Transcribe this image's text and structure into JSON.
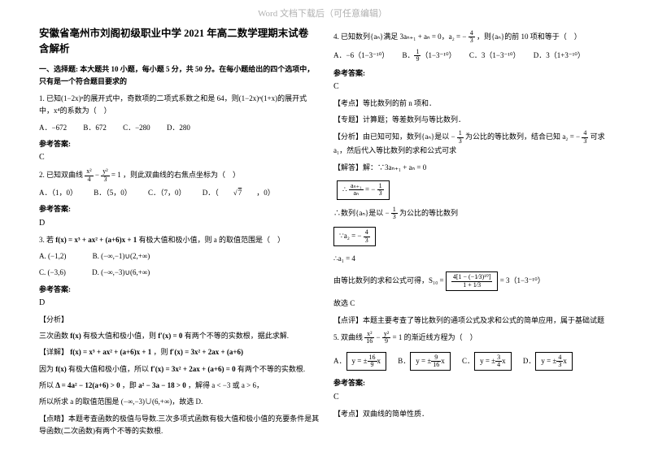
{
  "watermark": "Word 文档下载后（可任意编辑）",
  "left": {
    "title_l1": "安徽省亳州市刘阁初级职业中学 2021 年高二数学理期末试卷",
    "title_l2": "含解析",
    "section1": "一、选择题: 本大题共 10 小题，每小题 5 分，共 50 分。在每小题给出的四个选项中，只有是一个符合题目要求的",
    "q1": {
      "stem": "1. 已知(1−2x)ⁿ的展开式中，奇数项的二项式系数之和是 64，则(1−2x)ⁿ(1+x)的展开式中，x⁴的系数为（　）",
      "A": "A．−672",
      "B": "B．672",
      "C": "C．−280",
      "D": "D．280",
      "ans_label": "参考答案:",
      "ans": "C"
    },
    "q2": {
      "stem_pre": "2. 已知双曲线",
      "frac_n": "x²",
      "frac_d": "4",
      "minus": "−",
      "frac2_n": "y²",
      "frac2_d": "3",
      "eq": "= 1",
      "stem_post": "，则此双曲线的右焦点坐标为（　）",
      "A": "A．（1，0）",
      "B": "B．（5，0）",
      "C": "C．（7，0）",
      "D_pre": "D．（",
      "D_sqrt": "7",
      "D_post": "，0）",
      "ans_label": "参考答案:",
      "ans": "D"
    },
    "q3": {
      "stem_pre": "3. 若",
      "fx": "f(x) = x³ + ax² + (a+6)x + 1",
      "stem_post": "有极大值和极小值，则 a 的取值范围是（　）",
      "A": "A. (−1,2)",
      "B": "B. (−∞,−1)∪(2,+∞)",
      "C": "C. (−3,6)",
      "D": "D. (−∞,−3)∪(6,+∞)",
      "ans_label": "参考答案:",
      "ans": "D",
      "analysis_label": "【分析】",
      "a1_pre": "三次函数",
      "a1_fx": "f(x)",
      "a1_mid": "有极大值和极小值，则",
      "a1_fpx": "f′(x) = 0",
      "a1_post": "有两个不等的实数根，据此求解.",
      "a2_pre": "【详解】",
      "a2_fx": "f(x) = x³ + ax² + (a+6)x + 1",
      "a2_comma": "，则",
      "a2_fpx": "f′(x) = 3x² + 2ax + (a+6)",
      "a3_pre": "因为",
      "a3_fx": "f(x)",
      "a3_mid": "有极大值和极小值，所以",
      "a3_fpx": "f′(x) = 3x² + 2ax + (a+6) = 0",
      "a3_post": "有两个不等的实数根.",
      "a4_pre": "所以",
      "a4_delta": "Δ = 4a² − 12(a+6) > 0",
      "a4_mid": "，即",
      "a4_ineq": "a² − 3a − 18 > 0",
      "a4_post": "，解得 a < −3 或 a > 6，",
      "a5": "所以所求 a 的取值范围是 (−∞,−3)∪(6,+∞)，故选 D.",
      "a6": "【点睛】本题考查函数的极值与导数.三次多项式函数有极大值和极小值的充要条件是其导函数(二次函数)有两个不等的实数根."
    }
  },
  "right": {
    "q4": {
      "stem_pre": "4. 已知数列{aₙ}满足 3aₙ₊₁ + aₙ = 0，a₂ = −",
      "frac_n": "4",
      "frac_d": "3",
      "stem_post": "，则{aₙ}的前 10 项和等于（　）",
      "A": "A．−6（1−3⁻¹⁰）",
      "B_pre": "B．",
      "B_frac_n": "1",
      "B_frac_d": "9",
      "B_post": "（1−3⁻¹⁰）",
      "C": "C．3（1−3⁻¹⁰）",
      "D": "D．3（1+3⁻¹⁰）",
      "ans_label": "参考答案:",
      "ans": "C",
      "t1": "【考点】等比数列的前 n 项和．",
      "t2": "【专题】计算题；等差数列与等比数列．",
      "t3_pre": "【分析】由已知可知，数列{aₙ}是以 −",
      "t3_n": "1",
      "t3_d": "3",
      "t3_mid": "为公比的等比数列，结合已知",
      "t3_a2": "a₂ = −",
      "t3_n2": "4",
      "t3_d2": "3",
      "t3_post": "可求 a₁，然后代入等比数列的求和公式可求",
      "t4": "【解答】解：∵3aₙ₊₁ + aₙ = 0",
      "t5_lhs_n": "aₙ₊₁",
      "t5_lhs_d": "aₙ",
      "t5_eq": "= −",
      "t5_rhs_n": "1",
      "t5_rhs_d": "3",
      "t6_pre": "∴数列{aₙ}是以 −",
      "t6_n": "1",
      "t6_d": "3",
      "t6_post": "为公比的等比数列",
      "t7_pre": "∵a₂ = −",
      "t7_n": "4",
      "t7_d": "3",
      "t8": "∴a₁ = 4",
      "t9_pre": "由等比数列的求和公式可得，S₁₀ = ",
      "t9_num": "4[1 − (−1⁄3)¹⁰]",
      "t9_den": "1 + 1⁄3",
      "t9_post": " = 3（1−3⁻¹⁰）",
      "t10": "故选 C",
      "t11": "【点评】本题主要考查了等比数列的通项公式及求和公式的简单应用，属于基础试题"
    },
    "q5": {
      "stem_pre": "5. 双曲线",
      "n1": "x²",
      "d1": "16",
      "minus": "−",
      "n2": "y²",
      "d2": "9",
      "eq": "= 1",
      "stem_post": "的渐近线方程为（　）",
      "A_pre": "A．",
      "A_eq": "y = ±",
      "A_n": "16",
      "A_d": "9",
      "A_x": "x",
      "B_pre": "B．",
      "B_eq": "y = ±",
      "B_n": "9",
      "B_d": "16",
      "B_x": "x",
      "C_pre": "C．",
      "C_eq": "y = ±",
      "C_n": "3",
      "C_d": "4",
      "C_x": "x",
      "D_pre": "D．",
      "D_eq": "y = ±",
      "D_n": "4",
      "D_d": "3",
      "D_x": "x",
      "ans_label": "参考答案:",
      "ans": "C",
      "t1": "【考点】双曲线的简单性质．"
    }
  }
}
